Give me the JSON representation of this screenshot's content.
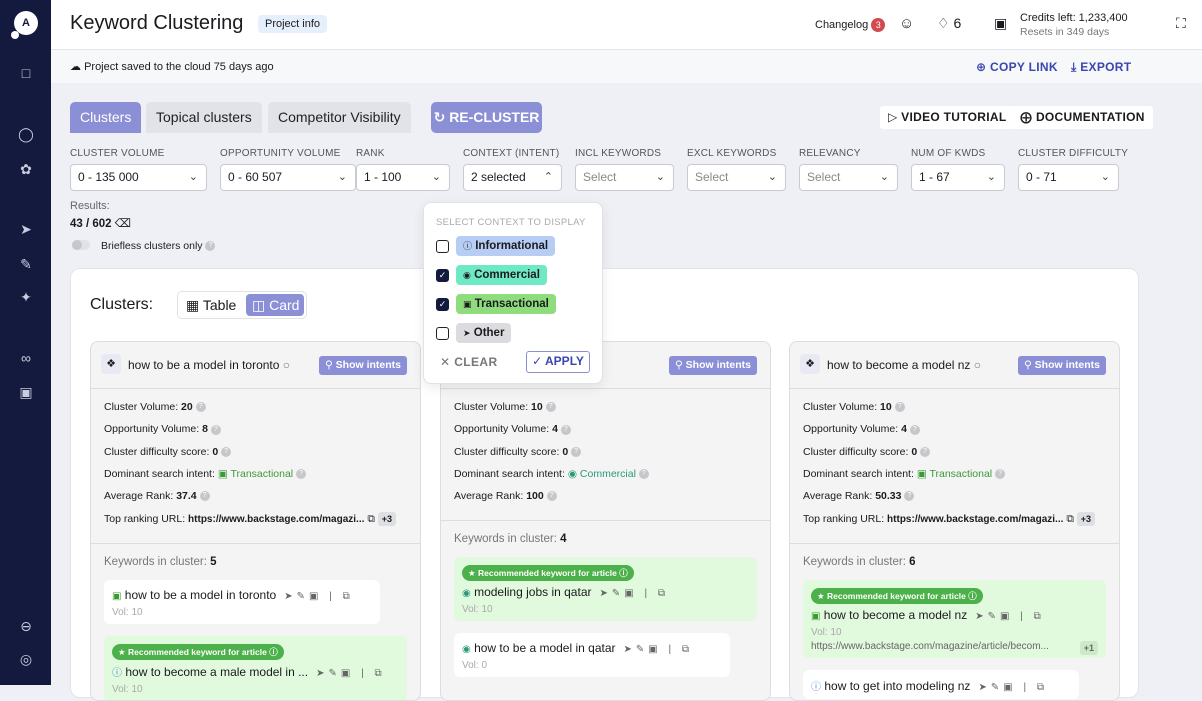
{
  "header": {
    "title": "Keyword Clustering",
    "project_info": "Project info",
    "changelog": "Changelog",
    "changelog_count": "3",
    "notifications": "6",
    "credits": "Credits left: 1,233,400",
    "resets": "Resets in 349 days"
  },
  "subbar": {
    "saved": "Project saved to the cloud 75 days ago",
    "copy_link": "COPY LINK",
    "export": "EXPORT"
  },
  "tabs": [
    {
      "label": "Clusters",
      "active": true
    },
    {
      "label": "Topical clusters"
    },
    {
      "label": "Competitor Visibility"
    }
  ],
  "recluster": "RE-CLUSTER",
  "video_tutorial": "VIDEO TUTORIAL",
  "documentation": "DOCUMENTATION",
  "filters": [
    {
      "label": "CLUSTER VOLUME",
      "value": "0 - 135 000"
    },
    {
      "label": "OPPORTUNITY VOLUME",
      "value": "0 - 60 507"
    },
    {
      "label": "RANK",
      "value": "1 - 100"
    },
    {
      "label": "CONTEXT (INTENT)",
      "value": "2 selected"
    },
    {
      "label": "INCL KEYWORDS",
      "placeholder": "Select"
    },
    {
      "label": "EXCL KEYWORDS",
      "placeholder": "Select"
    },
    {
      "label": "RELEVANCY",
      "placeholder": "Select"
    },
    {
      "label": "NUM OF KWDS",
      "value": "1 - 67"
    },
    {
      "label": "CLUSTER DIFFICULTY",
      "value": "0 - 71"
    }
  ],
  "results": {
    "label": "Results:",
    "value": "43 / 602"
  },
  "briefless": {
    "label": "Briefless clusters only",
    "on": false
  },
  "context_dropdown": {
    "heading": "SELECT CONTEXT TO DISPLAY",
    "options": [
      {
        "label": "Informational",
        "checked": false,
        "color": "#b7cdf3"
      },
      {
        "label": "Commercial",
        "checked": true,
        "color": "#6fe9c3"
      },
      {
        "label": "Transactional",
        "checked": true,
        "color": "#8fdc7d"
      },
      {
        "label": "Other",
        "checked": false,
        "color": "#dcdce0"
      }
    ],
    "clear": "CLEAR",
    "apply": "APPLY"
  },
  "clusters": {
    "label": "Clusters:",
    "view_table": "Table",
    "view_card": "Card",
    "view_selected": "Card"
  },
  "labels": {
    "show_intents": "Show intents",
    "cluster_volume": "Cluster Volume:",
    "opportunity_volume": "Opportunity Volume:",
    "difficulty": "Cluster difficulty score:",
    "intent": "Dominant search intent:",
    "avg_rank": "Average Rank:",
    "top_url": "Top ranking URL:",
    "keywords_in_cluster": "Keywords in cluster:",
    "recommended": "Recommended keyword for article"
  },
  "cards": [
    {
      "title": "how to be a model in toronto",
      "cluster_volume": "20",
      "opportunity_volume": "8",
      "difficulty": "0",
      "intent": "Transactional",
      "avg_rank": "37.4",
      "top_url": "https://www.backstage.com/magazi...",
      "url_more": "+3",
      "kw_count": "5",
      "keywords": [
        {
          "text": "how to be a model in toronto",
          "vol": "Vol: 10",
          "rec": false,
          "intent": "transactional"
        },
        {
          "text": "how to become a male model in ...",
          "vol": "Vol: 10",
          "rec": true,
          "intent": "informational"
        }
      ]
    },
    {
      "title": "",
      "cluster_volume": "10",
      "opportunity_volume": "4",
      "difficulty": "0",
      "intent": "Commercial",
      "avg_rank": "100",
      "kw_count": "4",
      "keywords": [
        {
          "text": "modeling jobs in qatar",
          "vol": "Vol: 10",
          "rec": true,
          "intent": "commercial"
        },
        {
          "text": "how to be a model in qatar",
          "vol": "Vol: 0",
          "rec": false,
          "intent": "commercial"
        }
      ]
    },
    {
      "title": "how to become a model nz",
      "cluster_volume": "10",
      "opportunity_volume": "4",
      "difficulty": "0",
      "intent": "Transactional",
      "avg_rank": "50.33",
      "top_url": "https://www.backstage.com/magazi...",
      "url_more": "+3",
      "kw_count": "6",
      "keywords": [
        {
          "text": "how to become a model nz",
          "vol": "Vol: 10",
          "rec": true,
          "intent": "transactional",
          "url": "https://www.backstage.com/magazine/article/becom...",
          "url_more": "+1"
        },
        {
          "text": "how to get into modeling nz",
          "vol": "",
          "rec": false,
          "intent": "informational"
        }
      ]
    }
  ],
  "colors": {
    "sidebar": "#141a3e",
    "accent": "#8b8fd6",
    "link": "#3b45b0",
    "transactional": "#3c9a35",
    "commercial": "#2a9a7a",
    "recommended": "#4cb14a"
  }
}
